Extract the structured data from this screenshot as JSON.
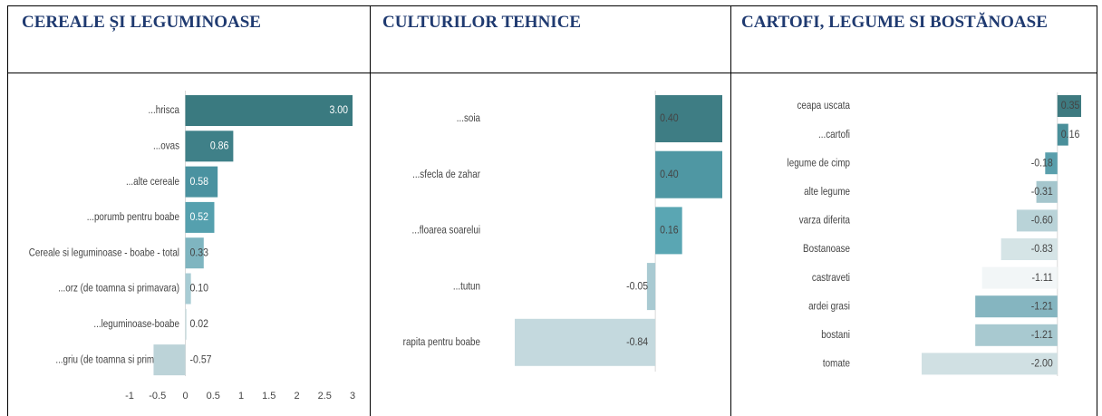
{
  "table": {
    "headers": [
      "CEREALE ȘI LEGUMINOASE",
      "CULTURILOR TEHNICE",
      "CARTOFI, LEGUME SI BOSTĂNOASE"
    ]
  },
  "chart_data": [
    {
      "type": "hbar",
      "categories": [
        "...hrisca",
        "...ovas",
        "...alte cereale",
        "...porumb pentru boabe",
        "Cereale si leguminoase - boabe - total",
        "...orz (de toamna si primavara)",
        "...leguminoase-boabe",
        "...griu (de toamna si primavara)"
      ],
      "values": [
        3.0,
        0.86,
        0.58,
        0.52,
        0.33,
        0.1,
        0.02,
        -0.57
      ],
      "value_labels": [
        "3.00",
        "0.86",
        "0.58",
        "0.52",
        "0.33",
        "0.10",
        "0.02",
        "-0.57"
      ],
      "colors": [
        "#3a7a80",
        "#3f8088",
        "#4a92a0",
        "#55a0ae",
        "#7fb5c0",
        "#a8ccd4",
        "#c8dde0",
        "#bcd3d8"
      ],
      "xlim": [
        -1,
        3
      ],
      "xticks": [
        -1,
        -0.5,
        0,
        0.5,
        1,
        1.5,
        2,
        2.5,
        3
      ]
    },
    {
      "type": "hbar",
      "categories": [
        "...soia",
        "...sfecla de zahar",
        "...floarea soarelui",
        "...tutun",
        "rapita pentru boabe"
      ],
      "values": [
        0.4,
        0.4,
        0.16,
        -0.05,
        -0.84
      ],
      "value_labels": [
        "0.40",
        "0.40",
        "0.16",
        "-0.05",
        "-0.84"
      ],
      "colors": [
        "#3e7d84",
        "#4f97a3",
        "#5aa6b3",
        "#a9cad2",
        "#c4d9de"
      ],
      "xlim": [
        -0.84,
        0.4
      ]
    },
    {
      "type": "hbar",
      "categories": [
        "ceapa uscata",
        "...cartofi",
        "legume de cimp",
        "alte legume",
        "varza diferita",
        "Bostanoase",
        "castraveti",
        "ardei grasi",
        "bostani",
        "tomate"
      ],
      "values": [
        0.35,
        0.16,
        -0.18,
        -0.31,
        -0.6,
        -0.83,
        -1.11,
        -1.21,
        -1.21,
        -2.0
      ],
      "value_labels": [
        "0.35",
        "0.16",
        "-0.18",
        "-0.31",
        "-0.60",
        "-0.83",
        "-1.11",
        "-1.21",
        "-1.21",
        "-2.00"
      ],
      "colors": [
        "#3e7a80",
        "#4a8f9a",
        "#5a9fac",
        "#a5c6cd",
        "#b9d3d8",
        "#d5e4e6",
        "#f2f6f7",
        "#85b5c0",
        "#a8c9d0",
        "#d0e0e3"
      ],
      "xlim": [
        -2.0,
        0.35
      ]
    }
  ]
}
